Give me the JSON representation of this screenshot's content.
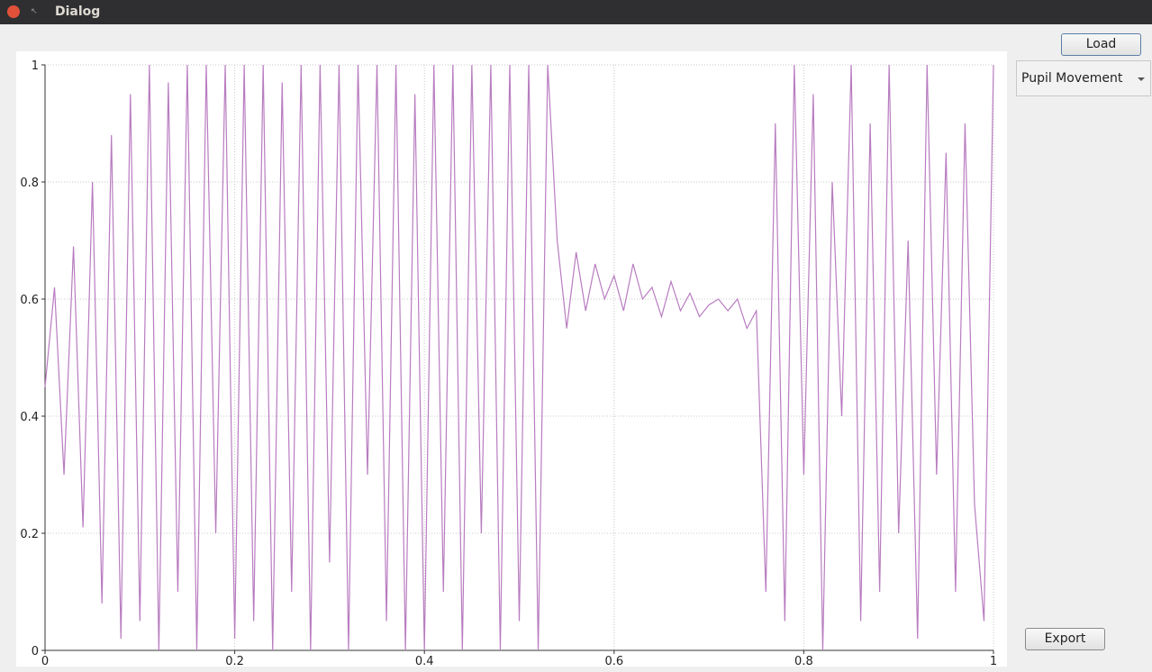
{
  "window": {
    "title": "Dialog"
  },
  "buttons": {
    "load": "Load",
    "export": "Export"
  },
  "dropdown": {
    "selected": "Pupil Movement"
  },
  "chart_data": {
    "type": "line",
    "x": [
      0,
      0.01,
      0.02,
      0.03,
      0.04,
      0.05,
      0.06,
      0.07,
      0.08,
      0.09,
      0.1,
      0.11,
      0.12,
      0.13,
      0.14,
      0.15,
      0.16,
      0.17,
      0.18,
      0.19,
      0.2,
      0.21,
      0.22,
      0.23,
      0.24,
      0.25,
      0.26,
      0.27,
      0.28,
      0.29,
      0.3,
      0.31,
      0.32,
      0.33,
      0.34,
      0.35,
      0.36,
      0.37,
      0.38,
      0.39,
      0.4,
      0.41,
      0.42,
      0.43,
      0.44,
      0.45,
      0.46,
      0.47,
      0.48,
      0.49,
      0.5,
      0.51,
      0.52,
      0.53,
      0.54,
      0.55,
      0.56,
      0.57,
      0.58,
      0.59,
      0.6,
      0.61,
      0.62,
      0.63,
      0.64,
      0.65,
      0.66,
      0.67,
      0.68,
      0.69,
      0.7,
      0.71,
      0.72,
      0.73,
      0.74,
      0.75,
      0.76,
      0.77,
      0.78,
      0.79,
      0.8,
      0.81,
      0.82,
      0.83,
      0.84,
      0.85,
      0.86,
      0.87,
      0.88,
      0.89,
      0.9,
      0.91,
      0.92,
      0.93,
      0.94,
      0.95,
      0.96,
      0.97,
      0.98,
      0.99,
      1
    ],
    "series": [
      {
        "color": "#b87cc0",
        "values": [
          0.45,
          0.62,
          0.3,
          0.69,
          0.21,
          0.8,
          0.08,
          0.88,
          0.02,
          0.95,
          0.05,
          1,
          0,
          0.97,
          0.1,
          1,
          0,
          1,
          0.2,
          1,
          0.02,
          1,
          0.05,
          1,
          0,
          0.97,
          0.1,
          1,
          0,
          1,
          0.15,
          1,
          0,
          1,
          0.3,
          1,
          0.05,
          1,
          0,
          0.95,
          0,
          1,
          0.1,
          1,
          0,
          1,
          0.2,
          1,
          0,
          1,
          0.05,
          1,
          0,
          1,
          0.7,
          0.55,
          0.68,
          0.58,
          0.66,
          0.6,
          0.64,
          0.58,
          0.66,
          0.6,
          0.62,
          0.57,
          0.63,
          0.58,
          0.61,
          0.57,
          0.59,
          0.6,
          0.58,
          0.6,
          0.55,
          0.58,
          0.1,
          0.9,
          0.05,
          1,
          0.3,
          0.95,
          0,
          0.8,
          0.4,
          1,
          0.05,
          0.9,
          0.1,
          1,
          0.2,
          0.7,
          0.02,
          1,
          0.3,
          0.85,
          0.1,
          0.9,
          0.25,
          0.05,
          1
        ]
      }
    ],
    "xlim": [
      0,
      1
    ],
    "ylim": [
      0,
      1
    ],
    "xticks": [
      0,
      0.2,
      0.4,
      0.6,
      0.8,
      1
    ],
    "yticks": [
      0,
      0.2,
      0.4,
      0.6,
      0.8,
      1
    ],
    "grid": true
  }
}
